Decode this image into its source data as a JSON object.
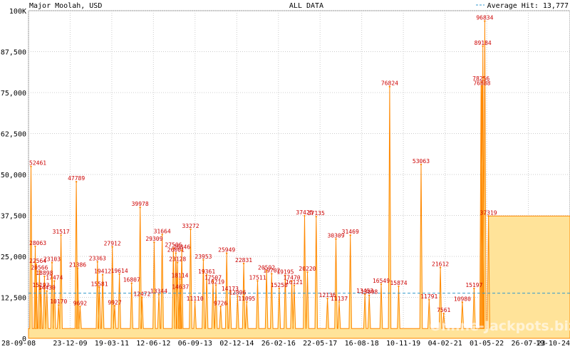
{
  "header": {
    "left_title": "Major Moolah, USD",
    "center_title": "ALL DATA",
    "average_label": "Average Hit: 13,777"
  },
  "watermark": "Online-Jackpots.biz",
  "colors": {
    "line": "#ff8800",
    "fill": "#ffe399",
    "average_line": "#3399cc",
    "grid": "#cccccc",
    "label": "#cc0000"
  },
  "chart_data": {
    "type": "area",
    "title": "ALL DATA",
    "xlabel": "",
    "ylabel": "",
    "ylim": [
      0,
      100000
    ],
    "grid": true,
    "legend_position": "top-right",
    "y_ticks": [
      "100K",
      "87,500",
      "75,000",
      "62,500",
      "50,000",
      "37,500",
      "25,000",
      "12,500",
      "0"
    ],
    "y_tick_values": [
      100000,
      87500,
      75000,
      62500,
      50000,
      37500,
      25000,
      12500,
      0
    ],
    "x_ticks": [
      "28-09-08",
      "23-12-09",
      "19-03-11",
      "12-06-12",
      "06-09-13",
      "02-12-14",
      "26-02-16",
      "22-05-17",
      "16-08-18",
      "10-11-19",
      "04-02-21",
      "01-05-22",
      "26-07-23",
      "19-10-24"
    ],
    "x_tick_dates": [
      "2008-09-28",
      "2009-12-23",
      "2011-03-19",
      "2012-06-12",
      "2013-09-06",
      "2014-12-02",
      "2016-02-26",
      "2017-05-22",
      "2018-08-16",
      "2019-11-10",
      "2021-02-04",
      "2022-05-01",
      "2023-07-26",
      "2024-10-19"
    ],
    "x_range": [
      "2008-09-28",
      "2024-10-19"
    ],
    "average": 13777,
    "series": [
      {
        "name": "Average Hit: 13,777",
        "points": [
          {
            "x": "2008-10-25",
            "y": 52461,
            "label": "52461"
          },
          {
            "x": "2008-12-10",
            "y": 28063,
            "label": "28063"
          },
          {
            "x": "2008-12-20",
            "y": 22564,
            "label": "22564"
          },
          {
            "x": "2009-01-25",
            "y": 20566,
            "label": "20566"
          },
          {
            "x": "2009-03-20",
            "y": 18898,
            "label": "18898"
          },
          {
            "x": "2009-02-10",
            "y": 15193,
            "label": "15193"
          },
          {
            "x": "2009-04-15",
            "y": 14430,
            "label": "14430"
          },
          {
            "x": "2009-07-05",
            "y": 17474,
            "label": "17474"
          },
          {
            "x": "2009-06-10",
            "y": 23103,
            "label": "23103"
          },
          {
            "x": "2009-09-15",
            "y": 31517,
            "label": "31517"
          },
          {
            "x": "2009-08-20",
            "y": 10170,
            "label": "10170"
          },
          {
            "x": "2010-02-28",
            "y": 47789,
            "label": "47789"
          },
          {
            "x": "2010-03-15",
            "y": 21386,
            "label": "21386"
          },
          {
            "x": "2010-04-10",
            "y": 9692,
            "label": "9692"
          },
          {
            "x": "2010-10-15",
            "y": 23363,
            "label": "23363"
          },
          {
            "x": "2010-12-10",
            "y": 19412,
            "label": "19412"
          },
          {
            "x": "2010-11-05",
            "y": 15581,
            "label": "15581"
          },
          {
            "x": "2011-03-25",
            "y": 27912,
            "label": "27912"
          },
          {
            "x": "2011-06-10",
            "y": 19614,
            "label": "19614"
          },
          {
            "x": "2011-04-20",
            "y": 9927,
            "label": "9927"
          },
          {
            "x": "2011-10-20",
            "y": 16807,
            "label": "16807"
          },
          {
            "x": "2012-01-20",
            "y": 39978,
            "label": "39978"
          },
          {
            "x": "2012-02-10",
            "y": 12472,
            "label": "12472"
          },
          {
            "x": "2012-06-20",
            "y": 29309,
            "label": "29309"
          },
          {
            "x": "2012-09-15",
            "y": 31664,
            "label": "31664"
          },
          {
            "x": "2012-08-10",
            "y": 13344,
            "label": "13344"
          },
          {
            "x": "2013-01-15",
            "y": 27506,
            "label": "27506"
          },
          {
            "x": "2013-02-10",
            "y": 26001,
            "label": "26001"
          },
          {
            "x": "2013-04-15",
            "y": 26846,
            "label": "26846"
          },
          {
            "x": "2013-02-28",
            "y": 23128,
            "label": "23128"
          },
          {
            "x": "2013-03-25",
            "y": 18114,
            "label": "18114"
          },
          {
            "x": "2013-04-01",
            "y": 14637,
            "label": "14637"
          },
          {
            "x": "2013-07-20",
            "y": 33272,
            "label": "33272"
          },
          {
            "x": "2013-09-05",
            "y": 11110,
            "label": "11110"
          },
          {
            "x": "2013-12-05",
            "y": 23953,
            "label": "23953"
          },
          {
            "x": "2014-01-10",
            "y": 19361,
            "label": "19361"
          },
          {
            "x": "2014-03-20",
            "y": 17507,
            "label": "17507"
          },
          {
            "x": "2014-04-20",
            "y": 16219,
            "label": "16219"
          },
          {
            "x": "2014-06-10",
            "y": 9726,
            "label": "9726"
          },
          {
            "x": "2014-08-15",
            "y": 25949,
            "label": "25949"
          },
          {
            "x": "2014-09-20",
            "y": 14173,
            "label": "14173"
          },
          {
            "x": "2014-12-10",
            "y": 12896,
            "label": "12896"
          },
          {
            "x": "2015-02-15",
            "y": 22831,
            "label": "22831"
          },
          {
            "x": "2015-03-20",
            "y": 11095,
            "label": "11095"
          },
          {
            "x": "2015-07-15",
            "y": 17511,
            "label": "17511"
          },
          {
            "x": "2015-10-20",
            "y": 20592,
            "label": "20592"
          },
          {
            "x": "2015-12-15",
            "y": 19702,
            "label": "19702"
          },
          {
            "x": "2016-03-05",
            "y": 15258,
            "label": "15258"
          },
          {
            "x": "2016-05-10",
            "y": 19195,
            "label": "19195"
          },
          {
            "x": "2016-07-20",
            "y": 17470,
            "label": "17470"
          },
          {
            "x": "2016-08-15",
            "y": 16121,
            "label": "16121"
          },
          {
            "x": "2016-12-05",
            "y": 37425,
            "label": "37425"
          },
          {
            "x": "2017-01-05",
            "y": 20220,
            "label": "20220"
          },
          {
            "x": "2017-04-10",
            "y": 37135,
            "label": "37135"
          },
          {
            "x": "2017-08-10",
            "y": 12136,
            "label": "12136"
          },
          {
            "x": "2017-11-10",
            "y": 30309,
            "label": "30309"
          },
          {
            "x": "2018-04-15",
            "y": 31469,
            "label": "31469"
          },
          {
            "x": "2017-12-15",
            "y": 11137,
            "label": "11137"
          },
          {
            "x": "2018-09-20",
            "y": 13453,
            "label": "13453"
          },
          {
            "x": "2018-11-05",
            "y": 13098,
            "label": "13098"
          },
          {
            "x": "2019-03-15",
            "y": 16549,
            "label": "16549"
          },
          {
            "x": "2019-06-15",
            "y": 76824,
            "label": "76824"
          },
          {
            "x": "2019-09-20",
            "y": 15874,
            "label": "15874"
          },
          {
            "x": "2020-05-20",
            "y": 53063,
            "label": "53063"
          },
          {
            "x": "2020-08-15",
            "y": 11791,
            "label": "11791"
          },
          {
            "x": "2020-12-15",
            "y": 21612,
            "label": "21612"
          },
          {
            "x": "2021-01-20",
            "y": 7561,
            "label": "7561"
          },
          {
            "x": "2021-08-10",
            "y": 10980,
            "label": "10980"
          },
          {
            "x": "2021-12-15",
            "y": 15197,
            "label": "15197"
          },
          {
            "x": "2022-04-10",
            "y": 96834,
            "label": "96834"
          },
          {
            "x": "2022-03-20",
            "y": 89184,
            "label": "89184"
          },
          {
            "x": "2022-03-01",
            "y": 78256,
            "label": "78256"
          },
          {
            "x": "2022-03-10",
            "y": 76888,
            "label": "76888"
          },
          {
            "x": "2022-05-20",
            "y": 37319,
            "label": "37319"
          }
        ]
      }
    ]
  }
}
